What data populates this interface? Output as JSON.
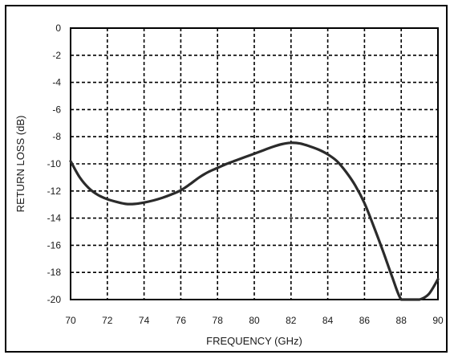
{
  "chart_data": {
    "type": "line",
    "title": "",
    "xlabel": "FREQUENCY (GHz)",
    "ylabel": "RETURN LOSS (dB)",
    "xlim": [
      70,
      90
    ],
    "ylim": [
      -20,
      0
    ],
    "x_ticks": [
      70,
      72,
      74,
      76,
      78,
      80,
      82,
      84,
      86,
      88,
      90
    ],
    "y_ticks": [
      0,
      -2,
      -4,
      -6,
      -8,
      -10,
      -12,
      -14,
      -16,
      -18,
      -20
    ],
    "grid": true,
    "grid_style": "dashed",
    "legend": "none",
    "colors": {
      "line": "#2b2b2b",
      "grid": "#000000",
      "frame": "#000000",
      "text": "#1a1a1a"
    },
    "series": [
      {
        "x": [
          70,
          70.5,
          71,
          71.5,
          72,
          72.5,
          73,
          73.5,
          74,
          74.5,
          75,
          75.5,
          76,
          76.5,
          77,
          77.5,
          78,
          78.5,
          79,
          79.5,
          80,
          80.5,
          81,
          81.5,
          82,
          82.5,
          83,
          83.5,
          84,
          84.5,
          85,
          85.5,
          86,
          86.5,
          87,
          87.5,
          88,
          88.5,
          89,
          89.5,
          90
        ],
        "y": [
          -9.8,
          -11.0,
          -11.8,
          -12.3,
          -12.6,
          -12.8,
          -12.95,
          -12.95,
          -12.85,
          -12.7,
          -12.5,
          -12.25,
          -11.95,
          -11.5,
          -11.0,
          -10.6,
          -10.3,
          -10.0,
          -9.75,
          -9.5,
          -9.25,
          -9.0,
          -8.75,
          -8.55,
          -8.45,
          -8.5,
          -8.7,
          -8.95,
          -9.3,
          -9.8,
          -10.6,
          -11.6,
          -12.9,
          -14.6,
          -16.4,
          -18.3,
          -20.0,
          -20.0,
          -20.0,
          -19.6,
          -18.5
        ]
      }
    ]
  }
}
